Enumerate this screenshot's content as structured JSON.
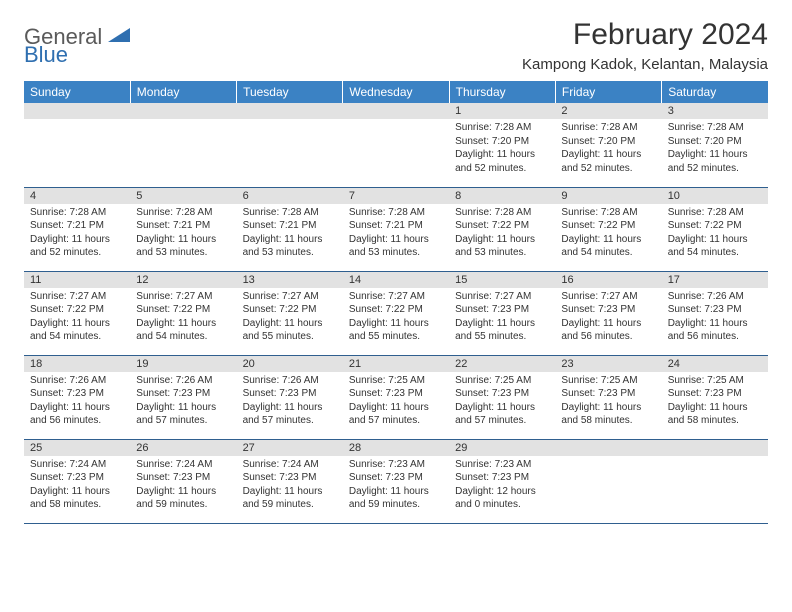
{
  "logo": {
    "text1": "General",
    "text2": "Blue"
  },
  "title": "February 2024",
  "location": "Kampong Kadok, Kelantan, Malaysia",
  "colors": {
    "header_bg": "#3b82c4",
    "header_fg": "#ffffff",
    "daynum_bg": "#e2e2e2",
    "row_border": "#2f5f8f",
    "logo_gray": "#5a5a5a",
    "logo_blue": "#2f6fb0"
  },
  "day_names": [
    "Sunday",
    "Monday",
    "Tuesday",
    "Wednesday",
    "Thursday",
    "Friday",
    "Saturday"
  ],
  "weeks": [
    [
      null,
      null,
      null,
      null,
      {
        "n": "1",
        "sr": "7:28 AM",
        "ss": "7:20 PM",
        "dl": "11 hours and 52 minutes."
      },
      {
        "n": "2",
        "sr": "7:28 AM",
        "ss": "7:20 PM",
        "dl": "11 hours and 52 minutes."
      },
      {
        "n": "3",
        "sr": "7:28 AM",
        "ss": "7:20 PM",
        "dl": "11 hours and 52 minutes."
      }
    ],
    [
      {
        "n": "4",
        "sr": "7:28 AM",
        "ss": "7:21 PM",
        "dl": "11 hours and 52 minutes."
      },
      {
        "n": "5",
        "sr": "7:28 AM",
        "ss": "7:21 PM",
        "dl": "11 hours and 53 minutes."
      },
      {
        "n": "6",
        "sr": "7:28 AM",
        "ss": "7:21 PM",
        "dl": "11 hours and 53 minutes."
      },
      {
        "n": "7",
        "sr": "7:28 AM",
        "ss": "7:21 PM",
        "dl": "11 hours and 53 minutes."
      },
      {
        "n": "8",
        "sr": "7:28 AM",
        "ss": "7:22 PM",
        "dl": "11 hours and 53 minutes."
      },
      {
        "n": "9",
        "sr": "7:28 AM",
        "ss": "7:22 PM",
        "dl": "11 hours and 54 minutes."
      },
      {
        "n": "10",
        "sr": "7:28 AM",
        "ss": "7:22 PM",
        "dl": "11 hours and 54 minutes."
      }
    ],
    [
      {
        "n": "11",
        "sr": "7:27 AM",
        "ss": "7:22 PM",
        "dl": "11 hours and 54 minutes."
      },
      {
        "n": "12",
        "sr": "7:27 AM",
        "ss": "7:22 PM",
        "dl": "11 hours and 54 minutes."
      },
      {
        "n": "13",
        "sr": "7:27 AM",
        "ss": "7:22 PM",
        "dl": "11 hours and 55 minutes."
      },
      {
        "n": "14",
        "sr": "7:27 AM",
        "ss": "7:22 PM",
        "dl": "11 hours and 55 minutes."
      },
      {
        "n": "15",
        "sr": "7:27 AM",
        "ss": "7:23 PM",
        "dl": "11 hours and 55 minutes."
      },
      {
        "n": "16",
        "sr": "7:27 AM",
        "ss": "7:23 PM",
        "dl": "11 hours and 56 minutes."
      },
      {
        "n": "17",
        "sr": "7:26 AM",
        "ss": "7:23 PM",
        "dl": "11 hours and 56 minutes."
      }
    ],
    [
      {
        "n": "18",
        "sr": "7:26 AM",
        "ss": "7:23 PM",
        "dl": "11 hours and 56 minutes."
      },
      {
        "n": "19",
        "sr": "7:26 AM",
        "ss": "7:23 PM",
        "dl": "11 hours and 57 minutes."
      },
      {
        "n": "20",
        "sr": "7:26 AM",
        "ss": "7:23 PM",
        "dl": "11 hours and 57 minutes."
      },
      {
        "n": "21",
        "sr": "7:25 AM",
        "ss": "7:23 PM",
        "dl": "11 hours and 57 minutes."
      },
      {
        "n": "22",
        "sr": "7:25 AM",
        "ss": "7:23 PM",
        "dl": "11 hours and 57 minutes."
      },
      {
        "n": "23",
        "sr": "7:25 AM",
        "ss": "7:23 PM",
        "dl": "11 hours and 58 minutes."
      },
      {
        "n": "24",
        "sr": "7:25 AM",
        "ss": "7:23 PM",
        "dl": "11 hours and 58 minutes."
      }
    ],
    [
      {
        "n": "25",
        "sr": "7:24 AM",
        "ss": "7:23 PM",
        "dl": "11 hours and 58 minutes."
      },
      {
        "n": "26",
        "sr": "7:24 AM",
        "ss": "7:23 PM",
        "dl": "11 hours and 59 minutes."
      },
      {
        "n": "27",
        "sr": "7:24 AM",
        "ss": "7:23 PM",
        "dl": "11 hours and 59 minutes."
      },
      {
        "n": "28",
        "sr": "7:23 AM",
        "ss": "7:23 PM",
        "dl": "11 hours and 59 minutes."
      },
      {
        "n": "29",
        "sr": "7:23 AM",
        "ss": "7:23 PM",
        "dl": "12 hours and 0 minutes."
      },
      null,
      null
    ]
  ],
  "labels": {
    "sunrise": "Sunrise:",
    "sunset": "Sunset:",
    "daylight": "Daylight:"
  }
}
